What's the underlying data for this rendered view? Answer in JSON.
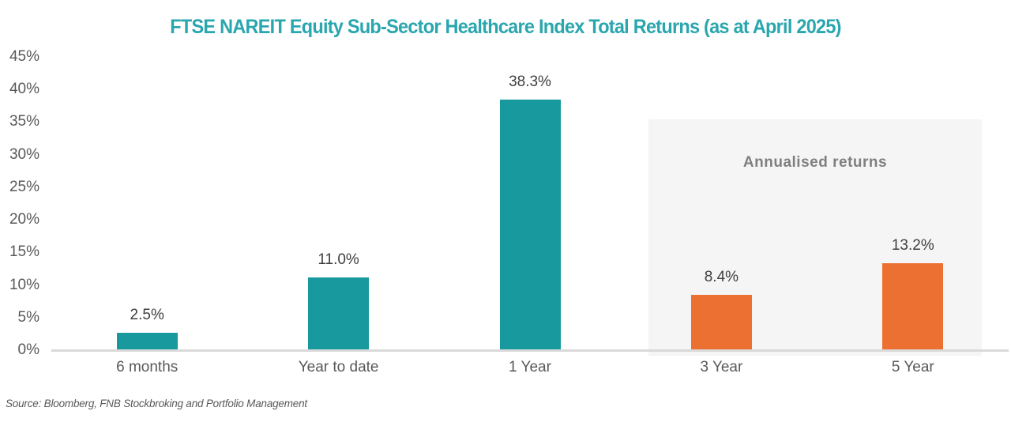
{
  "title": "FTSE NAREIT Equity Sub-Sector Healthcare Index Total Returns (as at April 2025)",
  "source_note": "Source: Bloomberg, FNB Stockbroking and Portfolio Management",
  "annotation": "Annualised returns",
  "colors": {
    "bar_teal": "#17999D",
    "bar_orange": "#EC7031",
    "title_text": "#2AA6AE",
    "panel_bg": "#F5F5F5",
    "axis_line": "#D9D9D9",
    "tick_text": "#595959",
    "value_label_text": "#3F3F3F",
    "annotation_text": "#7F7F7F",
    "source_text": "#595959"
  },
  "chart_data": {
    "type": "bar",
    "title": "FTSE NAREIT Equity Sub-Sector Healthcare Index Total Returns (as at April 2025)",
    "categories": [
      "6 months",
      "Year to date",
      "1 Year",
      "3 Year",
      "5 Year"
    ],
    "values": [
      2.5,
      11.0,
      38.3,
      8.4,
      13.2
    ],
    "value_labels": [
      "2.5%",
      "11.0%",
      "38.3%",
      "8.4%",
      "13.2%"
    ],
    "series_colors": [
      "teal",
      "teal",
      "teal",
      "orange",
      "orange"
    ],
    "xlabel": "",
    "ylabel": "",
    "ylim": [
      0,
      45
    ],
    "ytick_values": [
      0,
      5,
      10,
      15,
      20,
      25,
      30,
      35,
      40,
      45
    ],
    "ytick_labels": [
      "0%",
      "5%",
      "10%",
      "15%",
      "20%",
      "25%",
      "30%",
      "35%",
      "40%",
      "45%"
    ],
    "grid": false,
    "legend": "none",
    "annotation": "Annualised returns",
    "annotation_group": [
      "3 Year",
      "5 Year"
    ]
  }
}
